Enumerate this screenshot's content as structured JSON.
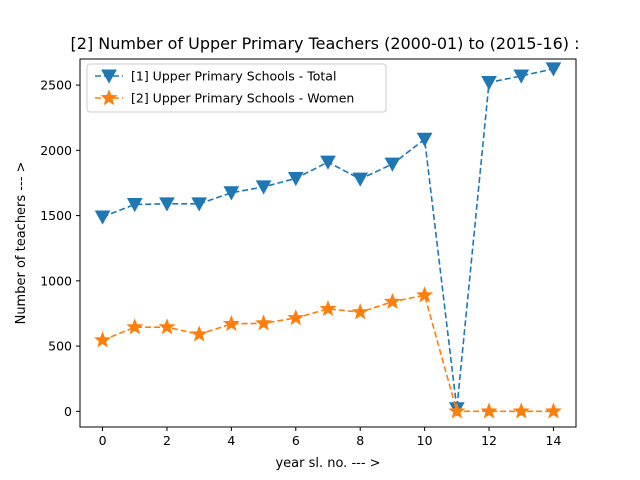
{
  "chart_data": {
    "type": "line",
    "title": "[2] Number of Upper Primary Teachers (2000-01) to (2015-16) :",
    "xlabel": "year sl. no. --- >",
    "ylabel": "Number of teachers --- >",
    "xlim": [
      -0.7,
      14.7
    ],
    "ylim": [
      -120,
      2700
    ],
    "xticks": [
      0,
      2,
      4,
      6,
      8,
      10,
      12,
      14
    ],
    "yticks": [
      0,
      500,
      1000,
      1500,
      2000,
      2500
    ],
    "legend_position": "upper-left",
    "x": [
      0,
      1,
      2,
      3,
      4,
      5,
      6,
      7,
      8,
      9,
      10,
      11,
      12,
      13,
      14
    ],
    "series": [
      {
        "name": "[1] Upper Primary Schools - Total",
        "color": "#1f77b4",
        "marker": "triangle-down",
        "values": [
          1490,
          1585,
          1590,
          1590,
          1675,
          1720,
          1785,
          1910,
          1780,
          1895,
          2085,
          20,
          2520,
          2570,
          2625
        ]
      },
      {
        "name": "[2] Upper Primary Schools - Women",
        "color": "#ff7f0e",
        "marker": "star",
        "values": [
          545,
          645,
          645,
          590,
          670,
          675,
          715,
          785,
          760,
          840,
          890,
          0,
          0,
          0,
          0
        ]
      }
    ]
  }
}
